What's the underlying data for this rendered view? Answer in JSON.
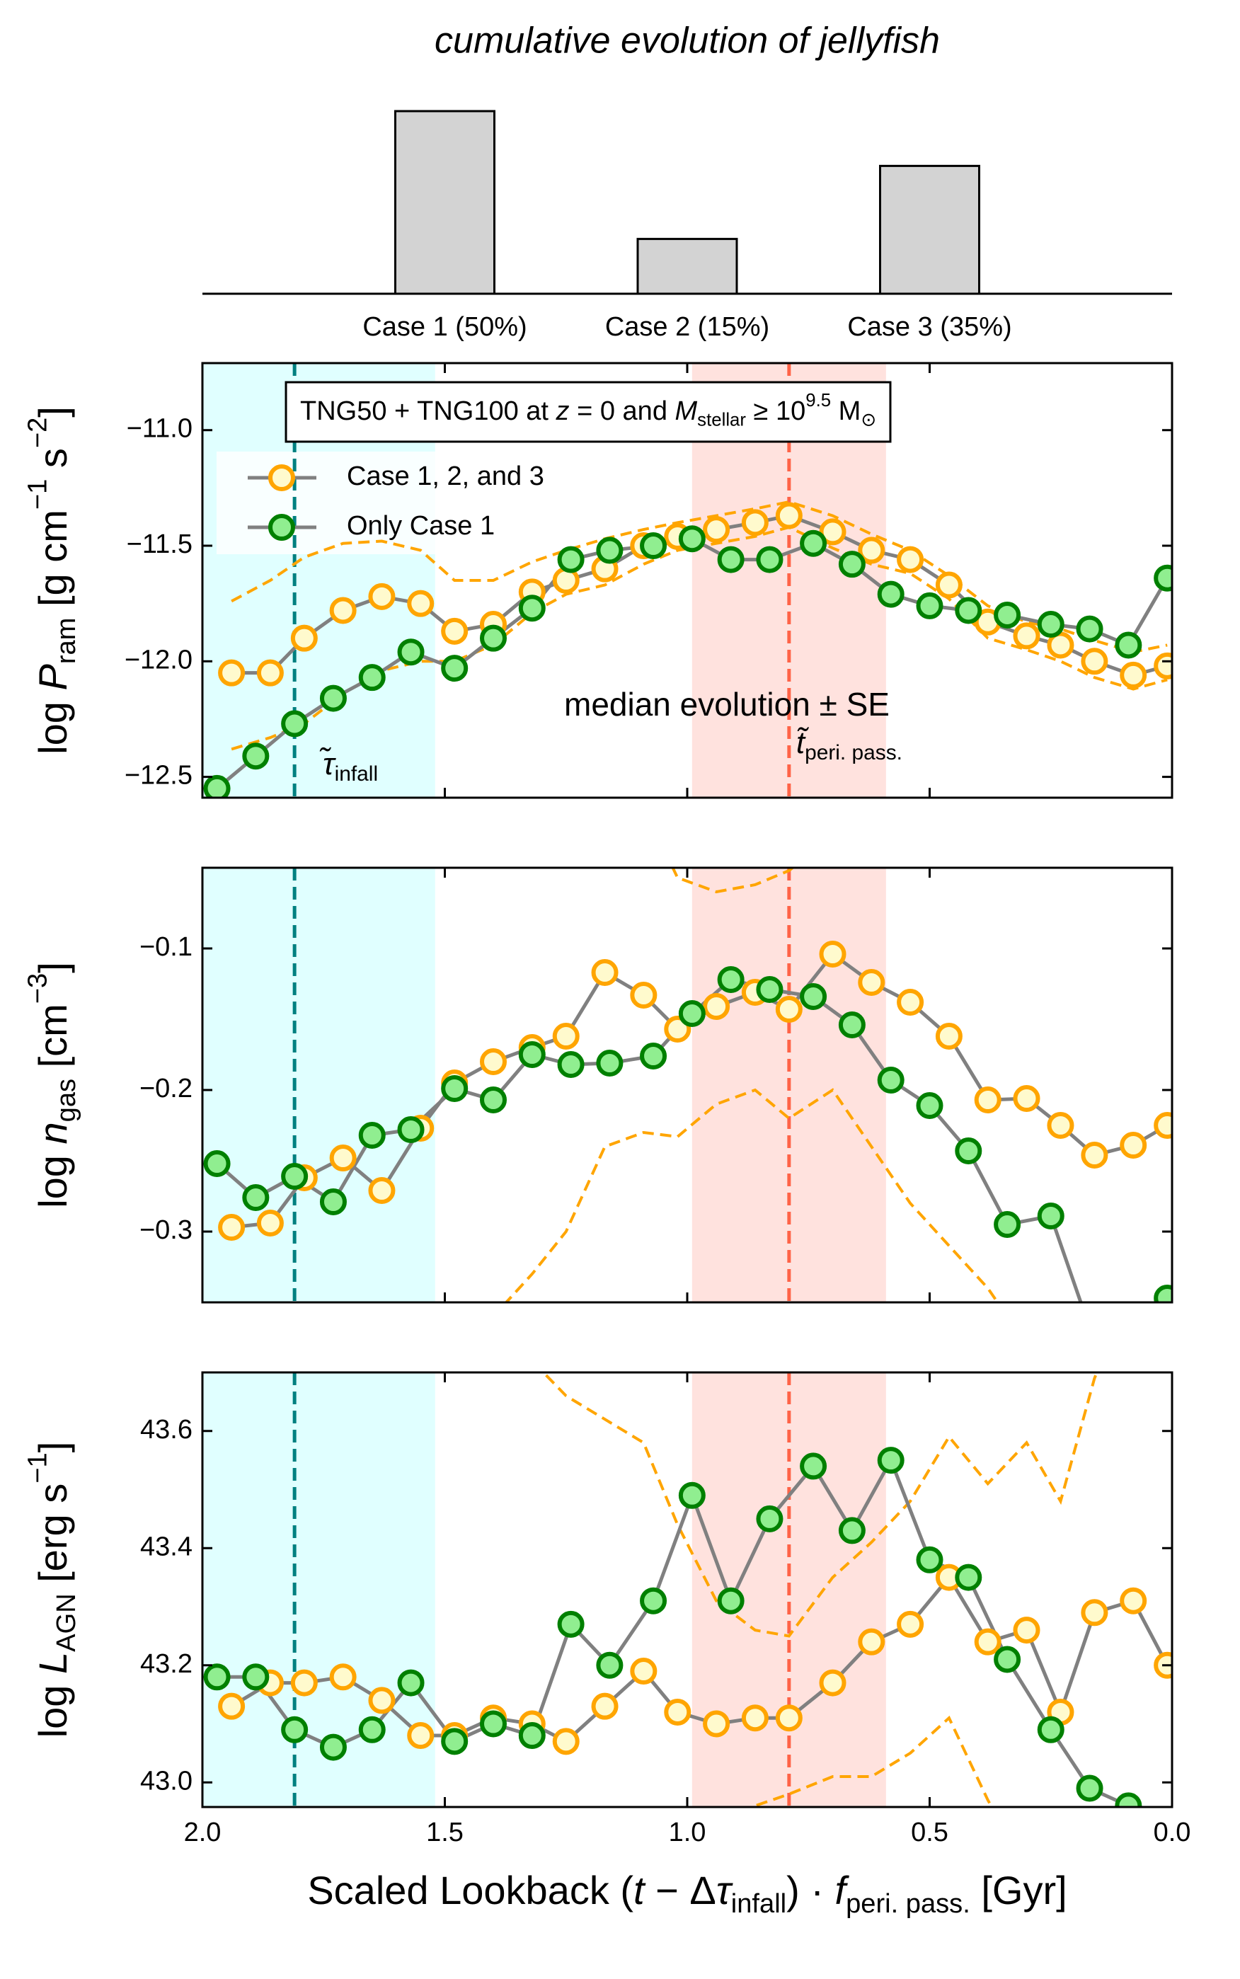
{
  "chart_data": [
    {
      "type": "bar",
      "title": "cumulative evolution of jellyfish",
      "categories": [
        "Case 1 (50%)",
        "Case 2 (15%)",
        "Case 3 (35%)"
      ],
      "values": [
        50,
        15,
        35
      ],
      "ylim": [
        0,
        50
      ],
      "color": "#d3d3d3",
      "edgecolor": "#000000"
    },
    {
      "type": "line",
      "ylabel": [
        "log ",
        [
          "P",
          "i"
        ],
        [
          "ram",
          "sub"
        ],
        " [g cm",
        [
          "−1",
          "sup"
        ],
        " s",
        [
          "−2",
          "sup"
        ],
        "]"
      ],
      "xlim": [
        2.0,
        0.0
      ],
      "xticks": [
        2,
        1.5,
        1,
        0.5,
        0
      ],
      "ylim": [
        -12.59,
        -10.71
      ],
      "yticks": [
        {
          "value": -12.5,
          "label": "−12.5"
        },
        {
          "value": -12.0,
          "label": "−12.0"
        },
        {
          "value": -11.5,
          "label": "−11.5"
        },
        {
          "value": -11.0,
          "label": "−11.0"
        }
      ],
      "legend": "upper left",
      "legend_title": [
        "TNG50 + TNG100 at ",
        [
          "z",
          "i"
        ],
        " = 0 and ",
        [
          "M",
          "i"
        ],
        [
          "stellar",
          "sub"
        ],
        " ≥ 10",
        [
          "9.5",
          "sup"
        ],
        " M",
        [
          "⊙",
          "sub"
        ]
      ],
      "spans": [
        {
          "from": 2.0,
          "to": 1.52,
          "color": "#e0ffff"
        },
        {
          "from": 0.99,
          "to": 0.59,
          "color": "#ffe2de"
        }
      ],
      "vlines": [
        {
          "x": 1.81,
          "color": "#008080",
          "label": [
            [
              "τ̃",
              "i"
            ],
            [
              "infall",
              "sub"
            ]
          ]
        },
        {
          "x": 0.79,
          "color": "#ff6347",
          "label": [
            [
              "t̃",
              "i"
            ],
            [
              "peri. pass.",
              "sub"
            ]
          ]
        }
      ],
      "se": {
        "color": "#ffa500",
        "label": "median evolution ± SE",
        "upper": [
          -11.74,
          -11.65,
          -11.55,
          -11.49,
          -11.48,
          -11.52,
          -11.65,
          -11.65,
          -11.57,
          -11.52,
          -11.47,
          -11.43,
          -11.4,
          -11.37,
          -11.34,
          -11.31,
          -11.37,
          -11.45,
          -11.52,
          -11.63,
          -11.76,
          -11.83,
          -11.86,
          -11.91,
          -11.96,
          -11.93
        ],
        "lower": [
          -12.38,
          -12.33,
          -12.27,
          -12.14,
          -12.04,
          -12.0,
          -12.0,
          -11.93,
          -11.79,
          -11.71,
          -11.67,
          -11.58,
          -11.52,
          -11.49,
          -11.46,
          -11.42,
          -11.51,
          -11.58,
          -11.62,
          -11.73,
          -11.9,
          -11.95,
          -12.0,
          -12.07,
          -12.12,
          -12.08
        ]
      },
      "series": [
        {
          "name": "Case 1, 2, and 3",
          "color": "#ffa500",
          "fill": "#fffacd",
          "line_color": "#808080",
          "x": [
            1.94,
            1.86,
            1.79,
            1.71,
            1.63,
            1.55,
            1.48,
            1.4,
            1.32,
            1.25,
            1.17,
            1.09,
            1.02,
            0.94,
            0.86,
            0.79,
            0.7,
            0.62,
            0.54,
            0.46,
            0.38,
            0.3,
            0.23,
            0.16,
            0.08,
            0.01
          ],
          "values": [
            -12.05,
            -12.05,
            -11.9,
            -11.78,
            -11.72,
            -11.75,
            -11.87,
            -11.84,
            -11.7,
            -11.65,
            -11.6,
            -11.5,
            -11.46,
            -11.43,
            -11.4,
            -11.37,
            -11.44,
            -11.52,
            -11.56,
            -11.67,
            -11.83,
            -11.89,
            -11.93,
            -12.0,
            -12.06,
            -12.02
          ]
        },
        {
          "name": "Only Case 1",
          "color": "#008000",
          "fill": "#90ee90",
          "line_color": "#808080",
          "x": [
            1.97,
            1.89,
            1.81,
            1.73,
            1.65,
            1.57,
            1.48,
            1.4,
            1.32,
            1.24,
            1.16,
            1.07,
            0.99,
            0.91,
            0.83,
            0.74,
            0.66,
            0.58,
            0.5,
            0.42,
            0.34,
            0.25,
            0.17,
            0.09,
            0.01
          ],
          "values": [
            -12.55,
            -12.41,
            -12.27,
            -12.16,
            -12.07,
            -11.96,
            -12.03,
            -11.9,
            -11.77,
            -11.56,
            -11.52,
            -11.5,
            -11.47,
            -11.56,
            -11.56,
            -11.49,
            -11.58,
            -11.71,
            -11.76,
            -11.78,
            -11.8,
            -11.84,
            -11.86,
            -11.93,
            -11.64
          ]
        }
      ]
    },
    {
      "type": "line",
      "ylabel": [
        "log ",
        [
          "n",
          "i"
        ],
        [
          "gas",
          "sub"
        ],
        " [cm",
        [
          "−3",
          "sup"
        ],
        "]"
      ],
      "xlim": [
        2.0,
        0.0
      ],
      "xticks": [
        2,
        1.5,
        1,
        0.5,
        0
      ],
      "ylim": [
        -0.35,
        -0.043
      ],
      "yticks": [
        {
          "value": -0.3,
          "label": "−0.3"
        },
        {
          "value": -0.2,
          "label": "−0.2"
        },
        {
          "value": -0.1,
          "label": "−0.1"
        }
      ],
      "spans": [
        {
          "from": 2.0,
          "to": 1.52,
          "color": "#e0ffff"
        },
        {
          "from": 0.99,
          "to": 0.59,
          "color": "#ffe2de"
        }
      ],
      "vlines": [
        {
          "x": 1.81,
          "color": "#008080"
        },
        {
          "x": 0.79,
          "color": "#ff6347"
        }
      ],
      "se": {
        "color": "#ffa500",
        "upper": [
          0,
          0,
          0,
          0,
          0,
          0,
          0,
          0,
          0,
          0,
          0,
          0,
          -0.05,
          -0.06,
          -0.055,
          -0.045,
          -0.02,
          0,
          0,
          0,
          0,
          0,
          0,
          0,
          0,
          0
        ],
        "lower": [
          -0.45,
          -0.45,
          -0.45,
          -0.45,
          -0.45,
          -0.45,
          -0.45,
          -0.36,
          -0.33,
          -0.3,
          -0.24,
          -0.23,
          -0.233,
          -0.21,
          -0.2,
          -0.22,
          -0.2,
          -0.24,
          -0.28,
          -0.31,
          -0.34,
          -0.38,
          -0.42,
          -0.42,
          -0.42,
          -0.42
        ]
      },
      "series": [
        {
          "color": "#ffa500",
          "fill": "#fffacd",
          "line_color": "#808080",
          "x": [
            1.94,
            1.86,
            1.79,
            1.71,
            1.63,
            1.55,
            1.48,
            1.4,
            1.32,
            1.25,
            1.17,
            1.09,
            1.02,
            0.94,
            0.86,
            0.79,
            0.7,
            0.62,
            0.54,
            0.46,
            0.38,
            0.3,
            0.23,
            0.16,
            0.08,
            0.01
          ],
          "values": [
            -0.297,
            -0.294,
            -0.262,
            -0.248,
            -0.271,
            -0.227,
            -0.195,
            -0.18,
            -0.17,
            -0.162,
            -0.117,
            -0.133,
            -0.157,
            -0.141,
            -0.131,
            -0.143,
            -0.104,
            -0.124,
            -0.138,
            -0.162,
            -0.207,
            -0.206,
            -0.225,
            -0.246,
            -0.239,
            -0.225
          ]
        },
        {
          "color": "#008000",
          "fill": "#90ee90",
          "line_color": "#808080",
          "x": [
            1.97,
            1.89,
            1.81,
            1.73,
            1.65,
            1.57,
            1.48,
            1.4,
            1.32,
            1.24,
            1.16,
            1.07,
            0.99,
            0.91,
            0.83,
            0.74,
            0.66,
            0.58,
            0.5,
            0.42,
            0.34,
            0.25,
            0.17,
            0.09,
            0.01
          ],
          "values": [
            -0.252,
            -0.276,
            -0.261,
            -0.279,
            -0.232,
            -0.228,
            -0.199,
            -0.207,
            -0.175,
            -0.182,
            -0.181,
            -0.176,
            -0.146,
            -0.122,
            -0.129,
            -0.134,
            -0.154,
            -0.193,
            -0.211,
            -0.243,
            -0.295,
            -0.289,
            -0.368,
            -0.42,
            -0.347
          ]
        }
      ]
    },
    {
      "type": "line",
      "ylabel": [
        "log ",
        [
          "L",
          "i"
        ],
        [
          "AGN",
          "sub"
        ],
        " [erg s",
        [
          "−1",
          "sup"
        ],
        "]"
      ],
      "xlabel": [
        "Scaled Lookback (",
        [
          "t",
          "i"
        ],
        " − Δ",
        [
          "τ",
          "i"
        ],
        [
          "infall",
          "sub"
        ],
        ") · ",
        [
          "f",
          "i"
        ],
        [
          "peri. pass.",
          "sub"
        ],
        "  [Gyr]"
      ],
      "xlim": [
        2.0,
        0.0
      ],
      "xticks": [
        {
          "value": 2,
          "label": "2.0"
        },
        {
          "value": 1.5,
          "label": "1.5"
        },
        {
          "value": 1,
          "label": "1.0"
        },
        {
          "value": 0.5,
          "label": "0.5"
        },
        {
          "value": 0,
          "label": "0.0"
        }
      ],
      "ylim": [
        42.958,
        43.7
      ],
      "yticks": [
        {
          "value": 43,
          "label": "43.0"
        },
        43.2,
        43.4,
        43.6
      ],
      "spans": [
        {
          "from": 2.0,
          "to": 1.52,
          "color": "#e0ffff"
        },
        {
          "from": 0.99,
          "to": 0.59,
          "color": "#ffe2de"
        }
      ],
      "vlines": [
        {
          "x": 1.81,
          "color": "#008080"
        },
        {
          "x": 0.79,
          "color": "#ff6347"
        }
      ],
      "se": {
        "color": "#ffa500",
        "upper": [
          44,
          44,
          44,
          44,
          44,
          44,
          44,
          43.85,
          43.72,
          43.66,
          43.62,
          43.58,
          43.44,
          43.31,
          43.26,
          43.25,
          43.35,
          43.41,
          43.48,
          43.59,
          43.51,
          43.58,
          43.48,
          43.69,
          43.85,
          43.9
        ],
        "lower": [
          42.85,
          42.85,
          42.85,
          42.85,
          42.85,
          42.85,
          42.85,
          42.85,
          42.85,
          42.85,
          42.85,
          42.85,
          42.85,
          42.9,
          42.96,
          42.98,
          43.01,
          43.01,
          43.05,
          43.11,
          42.97,
          42.85,
          42.85,
          42.85,
          42.85,
          42.85
        ]
      },
      "series": [
        {
          "color": "#ffa500",
          "fill": "#fffacd",
          "line_color": "#808080",
          "x": [
            1.94,
            1.86,
            1.79,
            1.71,
            1.63,
            1.55,
            1.48,
            1.4,
            1.32,
            1.25,
            1.17,
            1.09,
            1.02,
            0.94,
            0.86,
            0.79,
            0.7,
            0.62,
            0.54,
            0.46,
            0.38,
            0.3,
            0.23,
            0.16,
            0.08,
            0.01
          ],
          "values": [
            43.13,
            43.17,
            43.17,
            43.18,
            43.14,
            43.08,
            43.08,
            43.11,
            43.1,
            43.07,
            43.13,
            43.19,
            43.12,
            43.1,
            43.11,
            43.11,
            43.17,
            43.24,
            43.27,
            43.35,
            43.24,
            43.26,
            43.12,
            43.29,
            43.31,
            43.2
          ]
        },
        {
          "color": "#008000",
          "fill": "#90ee90",
          "line_color": "#808080",
          "x": [
            1.97,
            1.89,
            1.81,
            1.73,
            1.65,
            1.57,
            1.48,
            1.4,
            1.32,
            1.24,
            1.16,
            1.07,
            0.99,
            0.91,
            0.83,
            0.74,
            0.66,
            0.58,
            0.5,
            0.42,
            0.34,
            0.25,
            0.17,
            0.09,
            0.01
          ],
          "values": [
            43.18,
            43.18,
            43.09,
            43.06,
            43.09,
            43.17,
            43.07,
            43.1,
            43.08,
            43.27,
            43.2,
            43.31,
            43.49,
            43.31,
            43.45,
            43.54,
            43.43,
            43.55,
            43.38,
            43.35,
            43.21,
            43.09,
            42.99,
            42.96,
            42.93
          ]
        }
      ]
    }
  ]
}
